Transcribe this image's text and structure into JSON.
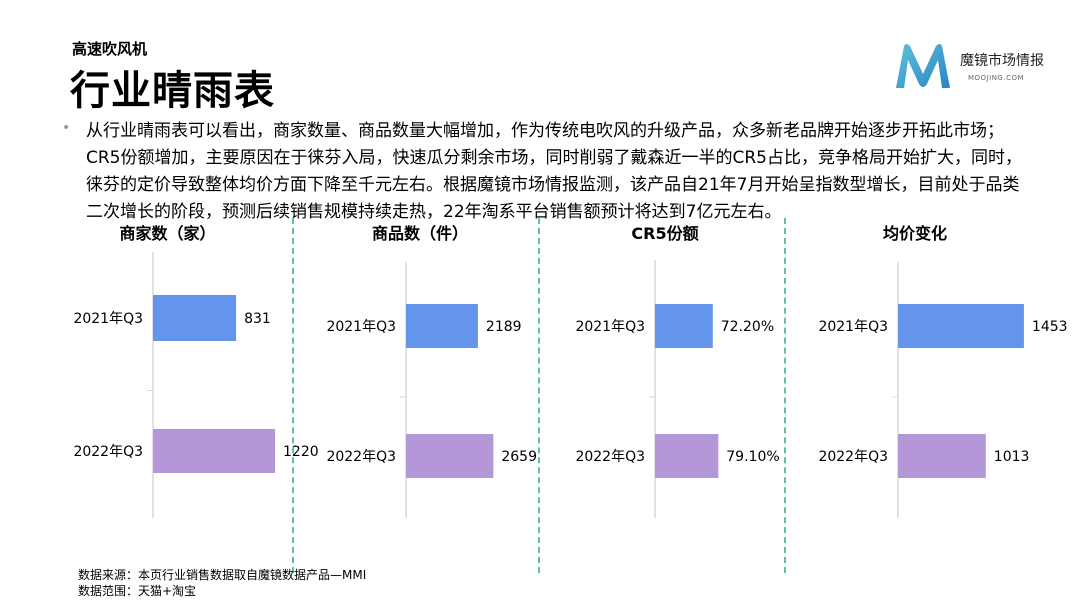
{
  "header": {
    "subtitle": "高速吹风机",
    "title": "行业晴雨表"
  },
  "logo": {
    "name": "魔镜市场情报",
    "url": "MOOJING.COM",
    "colors": [
      "#5ec2d9",
      "#2a84c6"
    ]
  },
  "summary": "从行业晴雨表可以看出，商家数量、商品数量大幅增加，作为传统电吹风的升级产品，众多新老品牌开始逐步开拓此市场；CR5份额增加，主要原因在于徕芬入局，快速瓜分剩余市场，同时削弱了戴森近一半的CR5占比，竞争格局开始扩大，同时，徕芬的定价导致整体均价方面下降至千元左右。根据魔镜市场情报监测，该产品自21年7月开始呈指数型增长，目前处于品类二次增长的阶段，预测后续销售规模持续走热，22年淘系平台销售额预计将达到7亿元左右。",
  "colors": {
    "q2021": "#6495ed",
    "q2022": "#b497d6",
    "divider": "#5ec2a8",
    "axis": "#d9d9d9"
  },
  "chart_data": [
    {
      "type": "bar",
      "orientation": "horizontal",
      "title": "商家数（家）",
      "categories": [
        "2021年Q3",
        "2022年Q3"
      ],
      "values": [
        831,
        1220
      ],
      "value_labels": [
        "831",
        "1220"
      ],
      "xlim": [
        0,
        2000
      ]
    },
    {
      "type": "bar",
      "orientation": "horizontal",
      "title": "商品数（件）",
      "categories": [
        "2021年Q3",
        "2022年Q3"
      ],
      "values": [
        2189,
        2659
      ],
      "value_labels": [
        "2189",
        "2659"
      ],
      "xlim": [
        0,
        7000
      ]
    },
    {
      "type": "bar",
      "orientation": "horizontal",
      "title": "CR5份额",
      "categories": [
        "2021年Q3",
        "2022年Q3"
      ],
      "values": [
        72.2,
        79.1
      ],
      "value_labels": [
        "72.20%",
        "79.10%"
      ],
      "xlim": [
        0,
        300
      ]
    },
    {
      "type": "bar",
      "orientation": "horizontal",
      "title": "均价变化",
      "categories": [
        "2021年Q3",
        "2022年Q3"
      ],
      "values": [
        1453,
        1013
      ],
      "value_labels": [
        "1453",
        "1013"
      ],
      "xlim": [
        0,
        3000
      ]
    }
  ],
  "footer": {
    "source": "数据来源：本页行业销售数据取自魔镜数据产品—MMI",
    "scope": "数据范围：天猫+淘宝"
  }
}
